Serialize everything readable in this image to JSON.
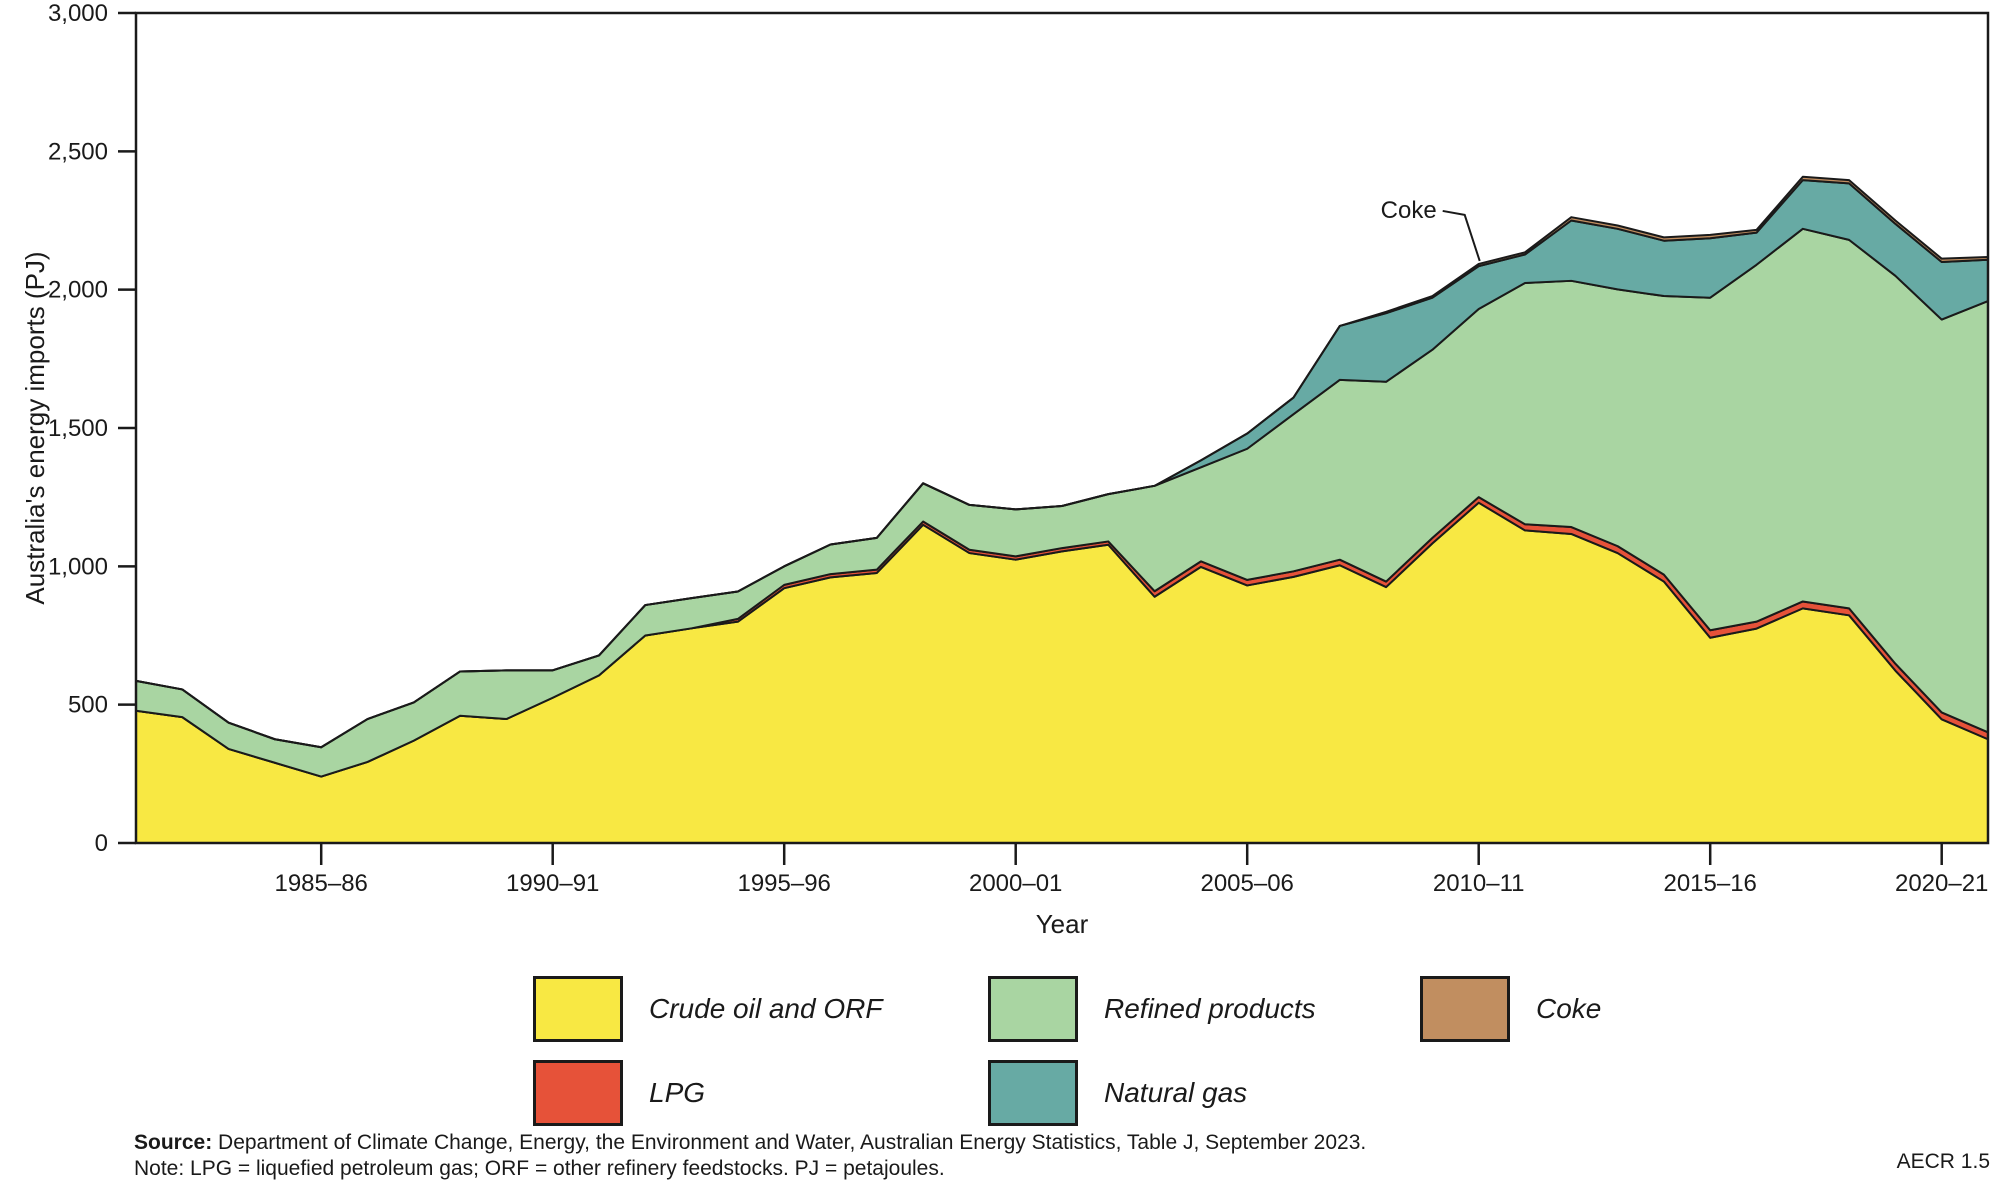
{
  "y_axis": {
    "label": "Australia's energy imports (PJ)",
    "tick_values": [
      0,
      500,
      1000,
      1500,
      2000,
      2500,
      3000
    ],
    "tick_labels": [
      "0",
      "500",
      "1,000",
      "1,500",
      "2,000",
      "2,500",
      "3,000"
    ]
  },
  "x_axis": {
    "label": "Year",
    "tick_indices": [
      4,
      9,
      14,
      19,
      24,
      29,
      34,
      39
    ],
    "tick_labels": [
      "1985–86",
      "1990–91",
      "1995–96",
      "2000–01",
      "2005–06",
      "2010–11",
      "2015–16",
      "2020–21"
    ]
  },
  "annotation": {
    "text": "Coke",
    "point_index": 29,
    "point_label": "2010–11"
  },
  "legend": [
    {
      "label": "Crude oil and ORF",
      "color": "#f8e843"
    },
    {
      "label": "LPG",
      "color": "#e65239"
    },
    {
      "label": "Refined products",
      "color": "#a9d5a2"
    },
    {
      "label": "Natural gas",
      "color": "#67aaa4"
    },
    {
      "label": "Coke",
      "color": "#c18e60"
    }
  ],
  "footer": {
    "source_label": "Source:",
    "source_text": " Department of Climate Change, Energy, the Environment and Water, Australian Energy Statistics, Table J, September 2023.",
    "note": "Note: LPG = liquefied petroleum gas; ORF = other refinery feedstocks. PJ = petajoules.",
    "figure_ref": "AECR 1.5"
  },
  "chart_data": {
    "type": "area",
    "stacked": true,
    "title": "",
    "xlabel": "Year",
    "ylabel": "Australia's energy imports (PJ)",
    "ylim": [
      0,
      3000
    ],
    "grid": false,
    "legend_position": "bottom",
    "categories": [
      "1981–82",
      "1982–83",
      "1983–84",
      "1984–85",
      "1985–86",
      "1986–87",
      "1987–88",
      "1988–89",
      "1989–90",
      "1990–91",
      "1991–92",
      "1992–93",
      "1993–94",
      "1994–95",
      "1995–96",
      "1996–97",
      "1997–98",
      "1998–99",
      "1999–00",
      "2000–01",
      "2001–02",
      "2002–03",
      "2003–04",
      "2004–05",
      "2005–06",
      "2006–07",
      "2007–08",
      "2008–09",
      "2009–10",
      "2010–11",
      "2011–12",
      "2012–13",
      "2013–14",
      "2014–15",
      "2015–16",
      "2016–17",
      "2017–18",
      "2018–19",
      "2019–20",
      "2020–21",
      "2021–22"
    ],
    "series": [
      {
        "name": "Crude oil and ORF",
        "color": "#f8e843",
        "values": [
          478,
          455,
          340,
          290,
          240,
          293,
          370,
          460,
          448,
          525,
          606,
          750,
          776,
          800,
          921,
          960,
          976,
          1150,
          1048,
          1024,
          1054,
          1078,
          890,
          998,
          931,
          962,
          1004,
          925,
          1083,
          1230,
          1130,
          1117,
          1048,
          945,
          742,
          775,
          848,
          823,
          623,
          447,
          375
        ]
      },
      {
        "name": "LPG",
        "color": "#e65239",
        "values": [
          0,
          0,
          0,
          0,
          0,
          0,
          0,
          0,
          0,
          0,
          0,
          0,
          0,
          10,
          12,
          12,
          12,
          12,
          12,
          12,
          12,
          12,
          20,
          20,
          20,
          20,
          20,
          20,
          20,
          20,
          22,
          25,
          25,
          25,
          27,
          25,
          25,
          25,
          25,
          25,
          25
        ]
      },
      {
        "name": "Refined products",
        "color": "#a9d5a2",
        "values": [
          108,
          100,
          95,
          85,
          106,
          155,
          138,
          160,
          176,
          99,
          72,
          110,
          109,
          99,
          67,
          107,
          115,
          138,
          162,
          170,
          152,
          171,
          381,
          340,
          474,
          568,
          650,
          722,
          680,
          680,
          872,
          890,
          928,
          1007,
          1202,
          1290,
          1347,
          1332,
          1402,
          1420,
          1559
        ]
      },
      {
        "name": "Natural gas",
        "color": "#67aaa4",
        "values": [
          0,
          0,
          0,
          0,
          0,
          0,
          0,
          0,
          0,
          0,
          0,
          0,
          0,
          0,
          0,
          0,
          0,
          0,
          0,
          0,
          0,
          0,
          0,
          25,
          55,
          60,
          195,
          248,
          188,
          155,
          103,
          218,
          219,
          200,
          215,
          116,
          176,
          204,
          188,
          208,
          149
        ]
      },
      {
        "name": "Coke",
        "color": "#c18e60",
        "values": [
          0,
          0,
          0,
          0,
          0,
          0,
          0,
          0,
          0,
          0,
          0,
          0,
          0,
          0,
          0,
          0,
          0,
          0,
          0,
          0,
          0,
          0,
          0,
          0,
          0,
          0,
          0,
          5,
          6,
          8,
          8,
          12,
          12,
          12,
          12,
          10,
          12,
          12,
          12,
          12,
          10
        ]
      }
    ]
  }
}
